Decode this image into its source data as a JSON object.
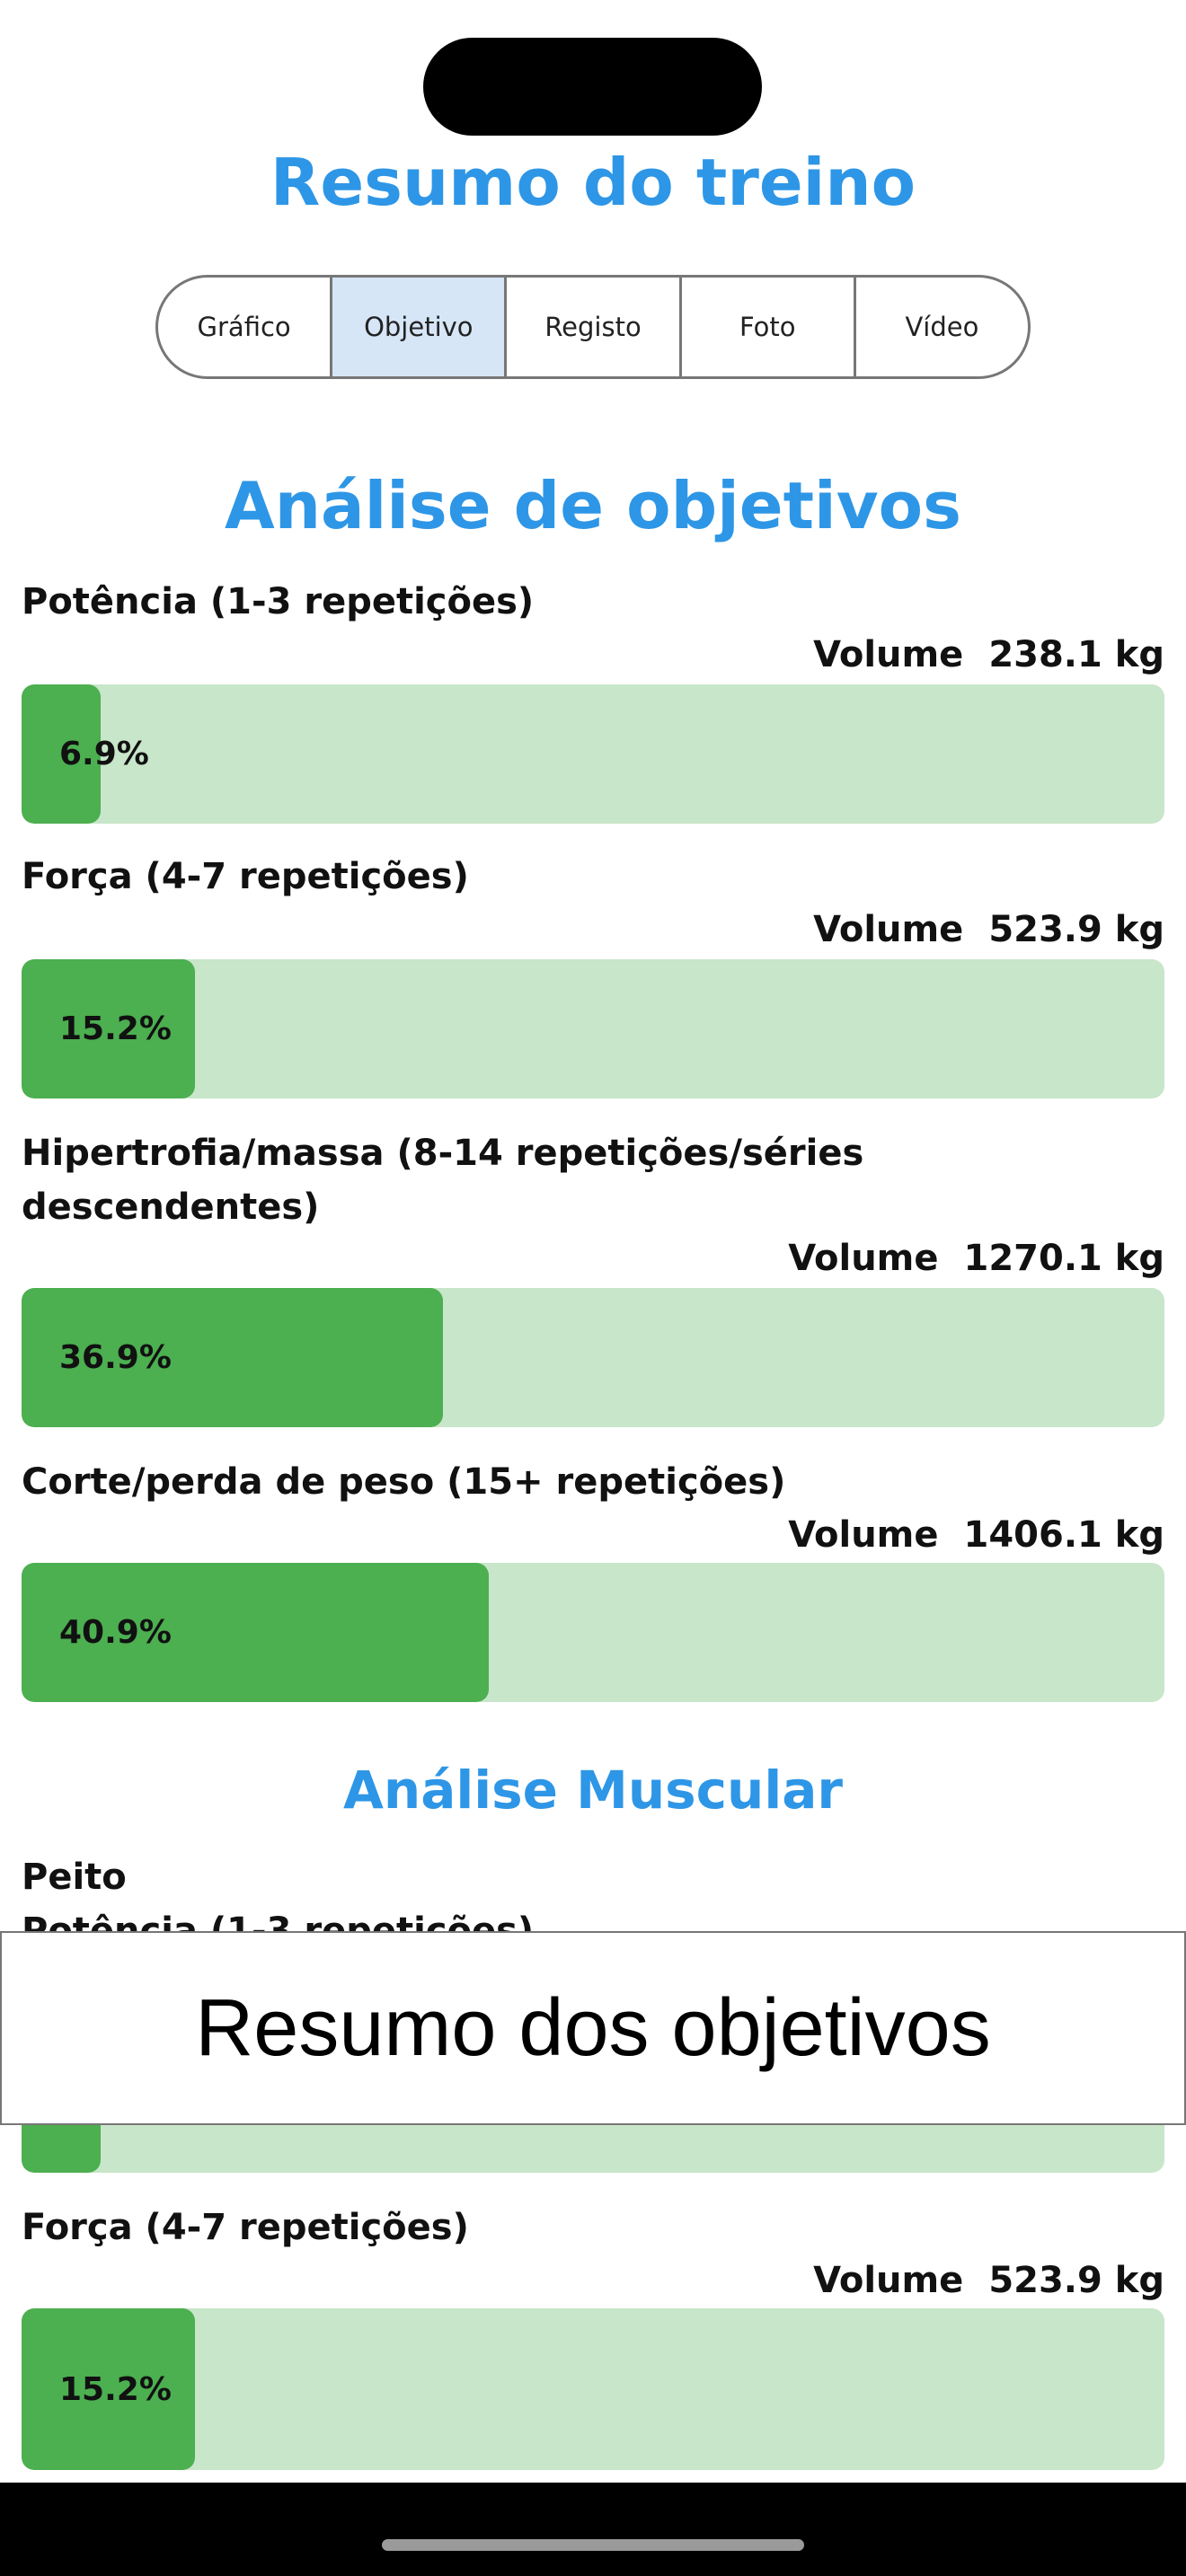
{
  "header": {
    "title": "Resumo do treino"
  },
  "tabs": [
    {
      "label": "Gráfico",
      "active": false
    },
    {
      "label": "Objetivo",
      "active": true
    },
    {
      "label": "Registo",
      "active": false
    },
    {
      "label": "Foto",
      "active": false
    },
    {
      "label": "Vídeo",
      "active": false
    }
  ],
  "objectives": {
    "title": "Análise de objetivos",
    "items": [
      {
        "label": "Potência (1-3 repetições)",
        "volume_label": "Volume",
        "volume": "238.1 kg",
        "percent_text": "6.9%",
        "percent": 6.9
      },
      {
        "label": "Força (4-7 repetições)",
        "volume_label": "Volume",
        "volume": "523.9 kg",
        "percent_text": "15.2%",
        "percent": 15.2
      },
      {
        "label": "Hipertrofia/massa (8-14 repetições/séries descendentes)",
        "volume_label": "Volume",
        "volume": "1270.1 kg",
        "percent_text": "36.9%",
        "percent": 36.9
      },
      {
        "label": "Corte/perda de peso (15+ repetições)",
        "volume_label": "Volume",
        "volume": "1406.1 kg",
        "percent_text": "40.9%",
        "percent": 40.9
      }
    ]
  },
  "muscle": {
    "title": "Análise Muscular",
    "group": "Peito",
    "items": [
      {
        "label": "Potência (1-3 repetições)",
        "percent": 6.9
      },
      {
        "label": "Força (4-7 repetições)",
        "volume_label": "Volume",
        "volume": "523.9 kg",
        "percent_text": "15.2%",
        "percent": 15.2
      }
    ]
  },
  "overlay": {
    "text": "Resumo dos objetivos"
  },
  "colors": {
    "accent": "#2e96e6",
    "bar_track": "#c8e6c9",
    "bar_fill": "#4caf50",
    "active_tab": "#d6e6f7"
  }
}
